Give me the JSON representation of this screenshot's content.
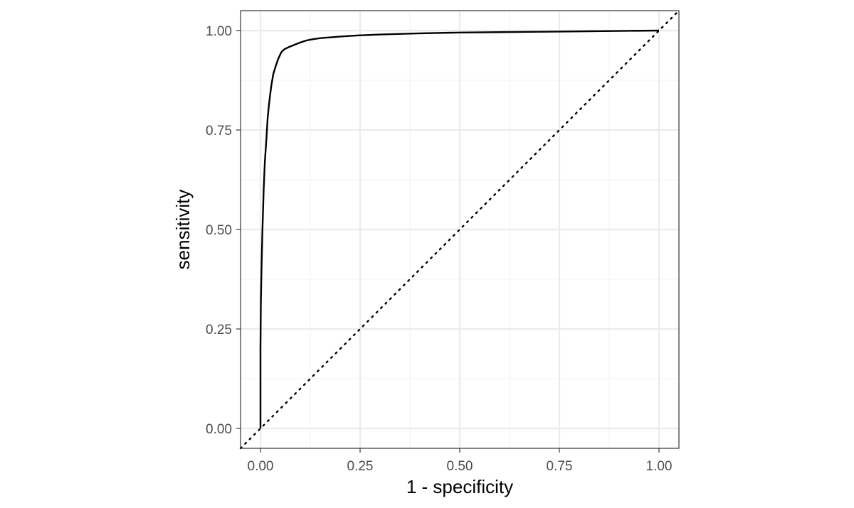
{
  "chart_data": {
    "type": "line",
    "title": "",
    "xlabel": "1 - specificity",
    "ylabel": "sensitivity",
    "xlim": [
      -0.05,
      1.05
    ],
    "ylim": [
      -0.05,
      1.05
    ],
    "x_ticks": [
      0,
      0.25,
      0.5,
      0.75,
      1
    ],
    "y_ticks": [
      0,
      0.25,
      0.5,
      0.75,
      1
    ],
    "x_tick_labels": [
      "0.00",
      "0.25",
      "0.50",
      "0.75",
      "1.00"
    ],
    "y_tick_labels": [
      "0.00",
      "0.25",
      "0.50",
      "0.75",
      "1.00"
    ],
    "grid": true,
    "legend": "none",
    "series": [
      {
        "style": "solid",
        "color": "#000000",
        "x": [
          0.0,
          0.0,
          0.001,
          0.003,
          0.005,
          0.008,
          0.011,
          0.015,
          0.018,
          0.022,
          0.027,
          0.032,
          0.038,
          0.045,
          0.052,
          0.06,
          0.07,
          0.08,
          0.09,
          0.1,
          0.115,
          0.13,
          0.15,
          0.175,
          0.2,
          0.25,
          0.3,
          0.4,
          0.5,
          0.6,
          0.7,
          0.8,
          0.9,
          1.0
        ],
        "y": [
          0.0,
          0.2,
          0.32,
          0.42,
          0.5,
          0.6,
          0.67,
          0.73,
          0.78,
          0.82,
          0.86,
          0.89,
          0.91,
          0.93,
          0.945,
          0.953,
          0.958,
          0.962,
          0.966,
          0.97,
          0.975,
          0.978,
          0.981,
          0.983,
          0.985,
          0.988,
          0.99,
          0.993,
          0.995,
          0.996,
          0.997,
          0.998,
          0.999,
          1.0
        ]
      },
      {
        "style": "dotted",
        "color": "#000000",
        "x": [
          -0.05,
          1.05
        ],
        "y": [
          -0.05,
          1.05
        ]
      }
    ],
    "colors": {
      "grid_major": "#ebebeb",
      "grid_minor": "#f3f3f3",
      "panel_border": "#333333",
      "tick_label": "#4d4d4d",
      "axis_title": "#000000"
    }
  }
}
